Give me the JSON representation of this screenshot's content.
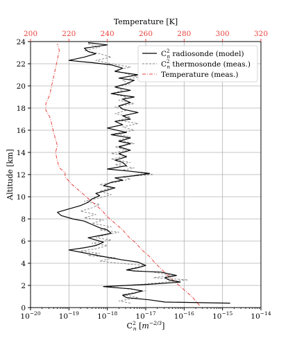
{
  "chart_data": {
    "type": "line",
    "xlabel": "C$_n^2$ [m$^{-2/3}$]",
    "xlabel_parts": {
      "base": "C",
      "sup": "2",
      "sub": "n",
      "unit_open": "[",
      "unit_base": "m",
      "unit_sup": "−2/3",
      "unit_close": "]"
    },
    "ylabel": "Altitude [km]",
    "top_xlabel": "Temperature [K]",
    "x_scale": "log",
    "xlim_exponent": [
      -20,
      -14
    ],
    "xticks_exponent": [
      -20,
      -19,
      -18,
      -17,
      -16,
      -15,
      -14
    ],
    "xtick_base": "10",
    "ylim": [
      0,
      24
    ],
    "yticks": [
      0,
      2,
      4,
      6,
      8,
      10,
      12,
      14,
      16,
      18,
      20,
      22,
      24
    ],
    "top_xlim": [
      200,
      320
    ],
    "top_xticks": [
      200,
      220,
      240,
      260,
      280,
      300,
      320
    ],
    "grid": true,
    "legend_position": "top-right",
    "colors": {
      "model": "#000000",
      "thermosonde": "#808080",
      "temperature": "#e8413c",
      "grid": "#b0b0b0"
    },
    "series": [
      {
        "name": "C$_n^2$ radiosonde (model)",
        "legend_parts": {
          "base": "C",
          "sup": "2",
          "sub": "n",
          "text": "radiosonde (model)"
        },
        "style": "solid",
        "axis": "bottom",
        "points": [
          [
            -14.8,
            0.4
          ],
          [
            -16.5,
            0.5
          ],
          [
            -16.9,
            0.7
          ],
          [
            -17.5,
            0.9
          ],
          [
            -17.6,
            1.1
          ],
          [
            -17.3,
            1.3
          ],
          [
            -17.1,
            1.5
          ],
          [
            -17.4,
            1.7
          ],
          [
            -17.8,
            1.8
          ],
          [
            -18.1,
            1.9
          ],
          [
            -16.9,
            2.1
          ],
          [
            -16.1,
            2.3
          ],
          [
            -16.4,
            2.5
          ],
          [
            -16.5,
            2.7
          ],
          [
            -16.2,
            2.9
          ],
          [
            -16.6,
            3.2
          ],
          [
            -17.3,
            3.3
          ],
          [
            -17.5,
            3.4
          ],
          [
            -17.2,
            3.6
          ],
          [
            -17.0,
            3.8
          ],
          [
            -17.2,
            4.1
          ],
          [
            -17.6,
            4.3
          ],
          [
            -18.1,
            4.6
          ],
          [
            -18.4,
            4.8
          ],
          [
            -18.7,
            5.0
          ],
          [
            -19.0,
            5.2
          ],
          [
            -18.6,
            5.4
          ],
          [
            -18.3,
            5.6
          ],
          [
            -18.1,
            5.9
          ],
          [
            -18.3,
            6.1
          ],
          [
            -18.5,
            6.3
          ],
          [
            -18.2,
            6.5
          ],
          [
            -17.9,
            6.7
          ],
          [
            -18.0,
            7.0
          ],
          [
            -18.2,
            7.2
          ],
          [
            -18.4,
            7.5
          ],
          [
            -18.6,
            7.8
          ],
          [
            -18.9,
            8.0
          ],
          [
            -19.2,
            8.3
          ],
          [
            -19.3,
            8.6
          ],
          [
            -19.0,
            8.9
          ],
          [
            -18.7,
            9.2
          ],
          [
            -18.5,
            9.5
          ],
          [
            -18.4,
            9.8
          ],
          [
            -18.2,
            10.1
          ],
          [
            -18.3,
            10.3
          ],
          [
            -18.0,
            10.6
          ],
          [
            -17.8,
            10.8
          ],
          [
            -18.1,
            11.0
          ],
          [
            -17.9,
            11.3
          ],
          [
            -17.6,
            11.5
          ],
          [
            -17.8,
            11.7
          ],
          [
            -17.3,
            11.9
          ],
          [
            -16.9,
            12.1
          ],
          [
            -17.4,
            12.3
          ],
          [
            -18.0,
            12.5
          ],
          [
            -17.5,
            12.8
          ],
          [
            -17.6,
            13.1
          ],
          [
            -17.8,
            13.3
          ],
          [
            -17.5,
            13.6
          ],
          [
            -17.7,
            13.9
          ],
          [
            -17.4,
            14.2
          ],
          [
            -17.7,
            14.5
          ],
          [
            -17.4,
            14.8
          ],
          [
            -17.7,
            15.0
          ],
          [
            -17.4,
            15.3
          ],
          [
            -17.9,
            15.6
          ],
          [
            -17.5,
            15.8
          ],
          [
            -18.0,
            16.2
          ],
          [
            -17.6,
            16.5
          ],
          [
            -17.8,
            16.8
          ],
          [
            -17.4,
            17.0
          ],
          [
            -17.6,
            17.3
          ],
          [
            -17.2,
            17.6
          ],
          [
            -17.6,
            17.9
          ],
          [
            -17.7,
            18.2
          ],
          [
            -17.4,
            18.5
          ],
          [
            -17.6,
            18.8
          ],
          [
            -17.3,
            19.0
          ],
          [
            -17.9,
            19.3
          ],
          [
            -17.4,
            19.6
          ],
          [
            -17.8,
            19.9
          ],
          [
            -17.5,
            20.2
          ],
          [
            -17.3,
            20.5
          ],
          [
            -17.7,
            20.7
          ],
          [
            -17.2,
            21.0
          ],
          [
            -17.8,
            21.3
          ],
          [
            -17.6,
            21.6
          ],
          [
            -17.9,
            21.9
          ],
          [
            -18.4,
            22.1
          ],
          [
            -19.0,
            22.3
          ],
          [
            -18.6,
            22.6
          ],
          [
            -18.3,
            22.9
          ],
          [
            -18.5,
            23.1
          ],
          [
            -18.6,
            23.4
          ],
          [
            -18.0,
            23.7
          ],
          [
            -18.5,
            23.9
          ]
        ]
      },
      {
        "name": "C$_n^2$ thermosonde (meas.)",
        "legend_parts": {
          "base": "C",
          "sup": "2",
          "sub": "n",
          "text": "thermosonde (meas.)"
        },
        "style": "dashed",
        "axis": "bottom",
        "points": [
          [
            -17.4,
            0.4
          ],
          [
            -17.7,
            0.6
          ],
          [
            -17.2,
            0.9
          ],
          [
            -17.6,
            1.2
          ],
          [
            -17.0,
            1.5
          ],
          [
            -17.5,
            1.7
          ],
          [
            -18.0,
            1.9
          ],
          [
            -17.1,
            2.1
          ],
          [
            -16.5,
            2.3
          ],
          [
            -15.9,
            2.5
          ],
          [
            -16.8,
            2.7
          ],
          [
            -16.3,
            2.9
          ],
          [
            -16.8,
            3.2
          ],
          [
            -17.5,
            3.4
          ],
          [
            -17.3,
            3.6
          ],
          [
            -17.0,
            3.8
          ],
          [
            -17.7,
            4.0
          ],
          [
            -18.2,
            4.2
          ],
          [
            -17.8,
            4.5
          ],
          [
            -18.5,
            4.7
          ],
          [
            -18.2,
            4.9
          ],
          [
            -18.7,
            5.1
          ],
          [
            -18.3,
            5.3
          ],
          [
            -18.0,
            5.6
          ],
          [
            -18.4,
            5.8
          ],
          [
            -17.9,
            6.1
          ],
          [
            -18.3,
            6.3
          ],
          [
            -18.0,
            6.6
          ],
          [
            -17.7,
            6.8
          ],
          [
            -18.2,
            7.0
          ],
          [
            -17.9,
            7.3
          ],
          [
            -18.4,
            7.6
          ],
          [
            -18.1,
            7.9
          ],
          [
            -18.6,
            8.1
          ],
          [
            -18.3,
            8.4
          ],
          [
            -18.7,
            8.7
          ],
          [
            -18.4,
            9.0
          ],
          [
            -18.2,
            9.3
          ],
          [
            -18.6,
            9.6
          ],
          [
            -18.2,
            9.9
          ],
          [
            -17.9,
            10.2
          ],
          [
            -18.2,
            10.5
          ],
          [
            -17.9,
            10.8
          ],
          [
            -18.2,
            11.1
          ],
          [
            -17.8,
            11.3
          ],
          [
            -17.4,
            11.6
          ],
          [
            -17.6,
            11.8
          ],
          [
            -16.8,
            12.0
          ],
          [
            -17.2,
            12.2
          ],
          [
            -17.6,
            12.4
          ],
          [
            -17.3,
            12.6
          ],
          [
            -17.8,
            12.9
          ],
          [
            -17.4,
            13.1
          ],
          [
            -17.9,
            13.4
          ],
          [
            -17.5,
            13.7
          ],
          [
            -17.9,
            13.9
          ],
          [
            -17.5,
            14.2
          ],
          [
            -17.8,
            14.5
          ],
          [
            -17.3,
            14.8
          ],
          [
            -17.7,
            15.1
          ],
          [
            -17.4,
            15.4
          ],
          [
            -17.8,
            15.7
          ],
          [
            -17.3,
            16.0
          ],
          [
            -17.6,
            16.3
          ],
          [
            -17.2,
            16.6
          ],
          [
            -17.7,
            16.9
          ],
          [
            -17.4,
            17.2
          ],
          [
            -17.8,
            17.5
          ],
          [
            -17.5,
            17.8
          ],
          [
            -17.8,
            18.1
          ],
          [
            -17.3,
            18.4
          ],
          [
            -17.7,
            18.7
          ],
          [
            -17.5,
            19.0
          ],
          [
            -17.9,
            19.3
          ],
          [
            -17.6,
            19.6
          ],
          [
            -17.8,
            19.9
          ],
          [
            -17.4,
            20.2
          ],
          [
            -17.6,
            20.5
          ],
          [
            -17.2,
            20.8
          ],
          [
            -17.5,
            21.1
          ],
          [
            -17.8,
            21.4
          ],
          [
            -17.4,
            21.7
          ],
          [
            -17.9,
            22.0
          ],
          [
            -18.3,
            22.3
          ],
          [
            -17.9,
            22.6
          ],
          [
            -18.2,
            22.9
          ],
          [
            -18.6,
            23.2
          ],
          [
            -18.2,
            23.5
          ],
          [
            -18.5,
            23.8
          ]
        ]
      },
      {
        "name": "Temperature (meas.)",
        "style": "dashdot",
        "axis": "top",
        "points": [
          [
            288,
            0.2
          ],
          [
            284,
            1.0
          ],
          [
            280,
            1.6
          ],
          [
            276,
            2.2
          ],
          [
            272,
            2.8
          ],
          [
            268,
            3.5
          ],
          [
            265,
            4.0
          ],
          [
            262,
            4.6
          ],
          [
            258,
            5.2
          ],
          [
            255,
            5.8
          ],
          [
            251,
            6.4
          ],
          [
            248,
            7.0
          ],
          [
            244,
            7.6
          ],
          [
            240,
            8.2
          ],
          [
            237,
            8.8
          ],
          [
            233,
            9.4
          ],
          [
            229,
            10.0
          ],
          [
            225,
            10.6
          ],
          [
            221,
            11.2
          ],
          [
            218,
            11.8
          ],
          [
            218,
            12.2
          ],
          [
            215,
            12.6
          ],
          [
            214,
            13.2
          ],
          [
            213,
            14.0
          ],
          [
            214,
            14.6
          ],
          [
            213,
            15.2
          ],
          [
            212,
            15.8
          ],
          [
            211,
            16.6
          ],
          [
            210,
            17.2
          ],
          [
            208,
            17.8
          ],
          [
            208,
            18.4
          ],
          [
            210,
            19.2
          ],
          [
            211,
            20.0
          ],
          [
            212,
            20.8
          ],
          [
            213,
            21.6
          ],
          [
            214,
            22.4
          ],
          [
            215,
            23.2
          ],
          [
            214,
            23.8
          ]
        ]
      }
    ]
  }
}
